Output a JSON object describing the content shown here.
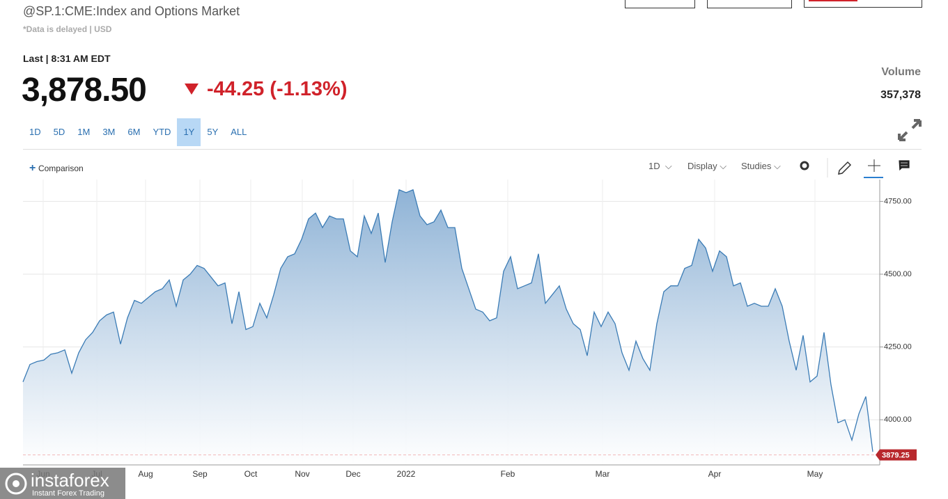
{
  "header": {
    "title": "@SP.1:CME:Index and Options Market",
    "subtitle": "*Data is delayed | USD",
    "last_label": "Last | 8:31 AM EDT",
    "price": "3,878.50",
    "change": "-44.25 (-1.13%)",
    "volume_label": "Volume",
    "volume": "357,378"
  },
  "ranges": [
    "1D",
    "5D",
    "1M",
    "3M",
    "6M",
    "YTD",
    "1Y",
    "5Y",
    "ALL"
  ],
  "active_range": "1Y",
  "toolbar": {
    "comparison": "Comparison",
    "interval": "1D",
    "display": "Display",
    "studies": "Studies"
  },
  "watermark": {
    "brand": "instaforex",
    "tagline": "Instant Forex Trading"
  },
  "chart_data": {
    "type": "area",
    "color": "#3a7bb5",
    "grid": true,
    "values": [
      4130,
      4190,
      4200,
      4205,
      4225,
      4230,
      4240,
      4160,
      4230,
      4275,
      4300,
      4340,
      4360,
      4370,
      4260,
      4350,
      4410,
      4400,
      4420,
      4440,
      4450,
      4480,
      4390,
      4480,
      4500,
      4530,
      4520,
      4490,
      4460,
      4470,
      4330,
      4440,
      4310,
      4320,
      4400,
      4350,
      4430,
      4520,
      4560,
      4570,
      4620,
      4690,
      4710,
      4660,
      4700,
      4690,
      4690,
      4580,
      4560,
      4700,
      4640,
      4710,
      4540,
      4680,
      4790,
      4780,
      4790,
      4700,
      4670,
      4680,
      4720,
      4660,
      4660,
      4520,
      4450,
      4380,
      4370,
      4340,
      4350,
      4510,
      4560,
      4450,
      4460,
      4470,
      4570,
      4400,
      4430,
      4460,
      4380,
      4330,
      4310,
      4220,
      4370,
      4320,
      4370,
      4330,
      4230,
      4170,
      4270,
      4210,
      4170,
      4330,
      4440,
      4460,
      4460,
      4520,
      4530,
      4620,
      4590,
      4510,
      4580,
      4560,
      4460,
      4470,
      4390,
      4400,
      4390,
      4390,
      4450,
      4390,
      4270,
      4170,
      4290,
      4130,
      4150,
      4300,
      4120,
      3990,
      4000,
      3930,
      4020,
      4080,
      3890
    ],
    "xlim": [
      0,
      123
    ],
    "xticks": [
      {
        "value": 2.9,
        "label": "Jun"
      },
      {
        "value": 10.6,
        "label": "Jul"
      },
      {
        "value": 17.6,
        "label": "Aug"
      },
      {
        "value": 25.4,
        "label": "Sep"
      },
      {
        "value": 32.7,
        "label": "Oct"
      },
      {
        "value": 40.1,
        "label": "Nov"
      },
      {
        "value": 47.4,
        "label": "Dec"
      },
      {
        "value": 55,
        "label": "2022"
      },
      {
        "value": 69.6,
        "label": "Feb"
      },
      {
        "value": 83.2,
        "label": "Mar"
      },
      {
        "value": 99.3,
        "label": "Apr"
      },
      {
        "value": 113.7,
        "label": "May"
      }
    ],
    "ylim": [
      3845,
      4825
    ],
    "yticks": [
      {
        "value": 4000,
        "label": "4000.00"
      },
      {
        "value": 4250,
        "label": "4250.00"
      },
      {
        "value": 4500,
        "label": "4500.00"
      },
      {
        "value": 4750,
        "label": "4750.00"
      }
    ],
    "last_value": 3879.25
  }
}
